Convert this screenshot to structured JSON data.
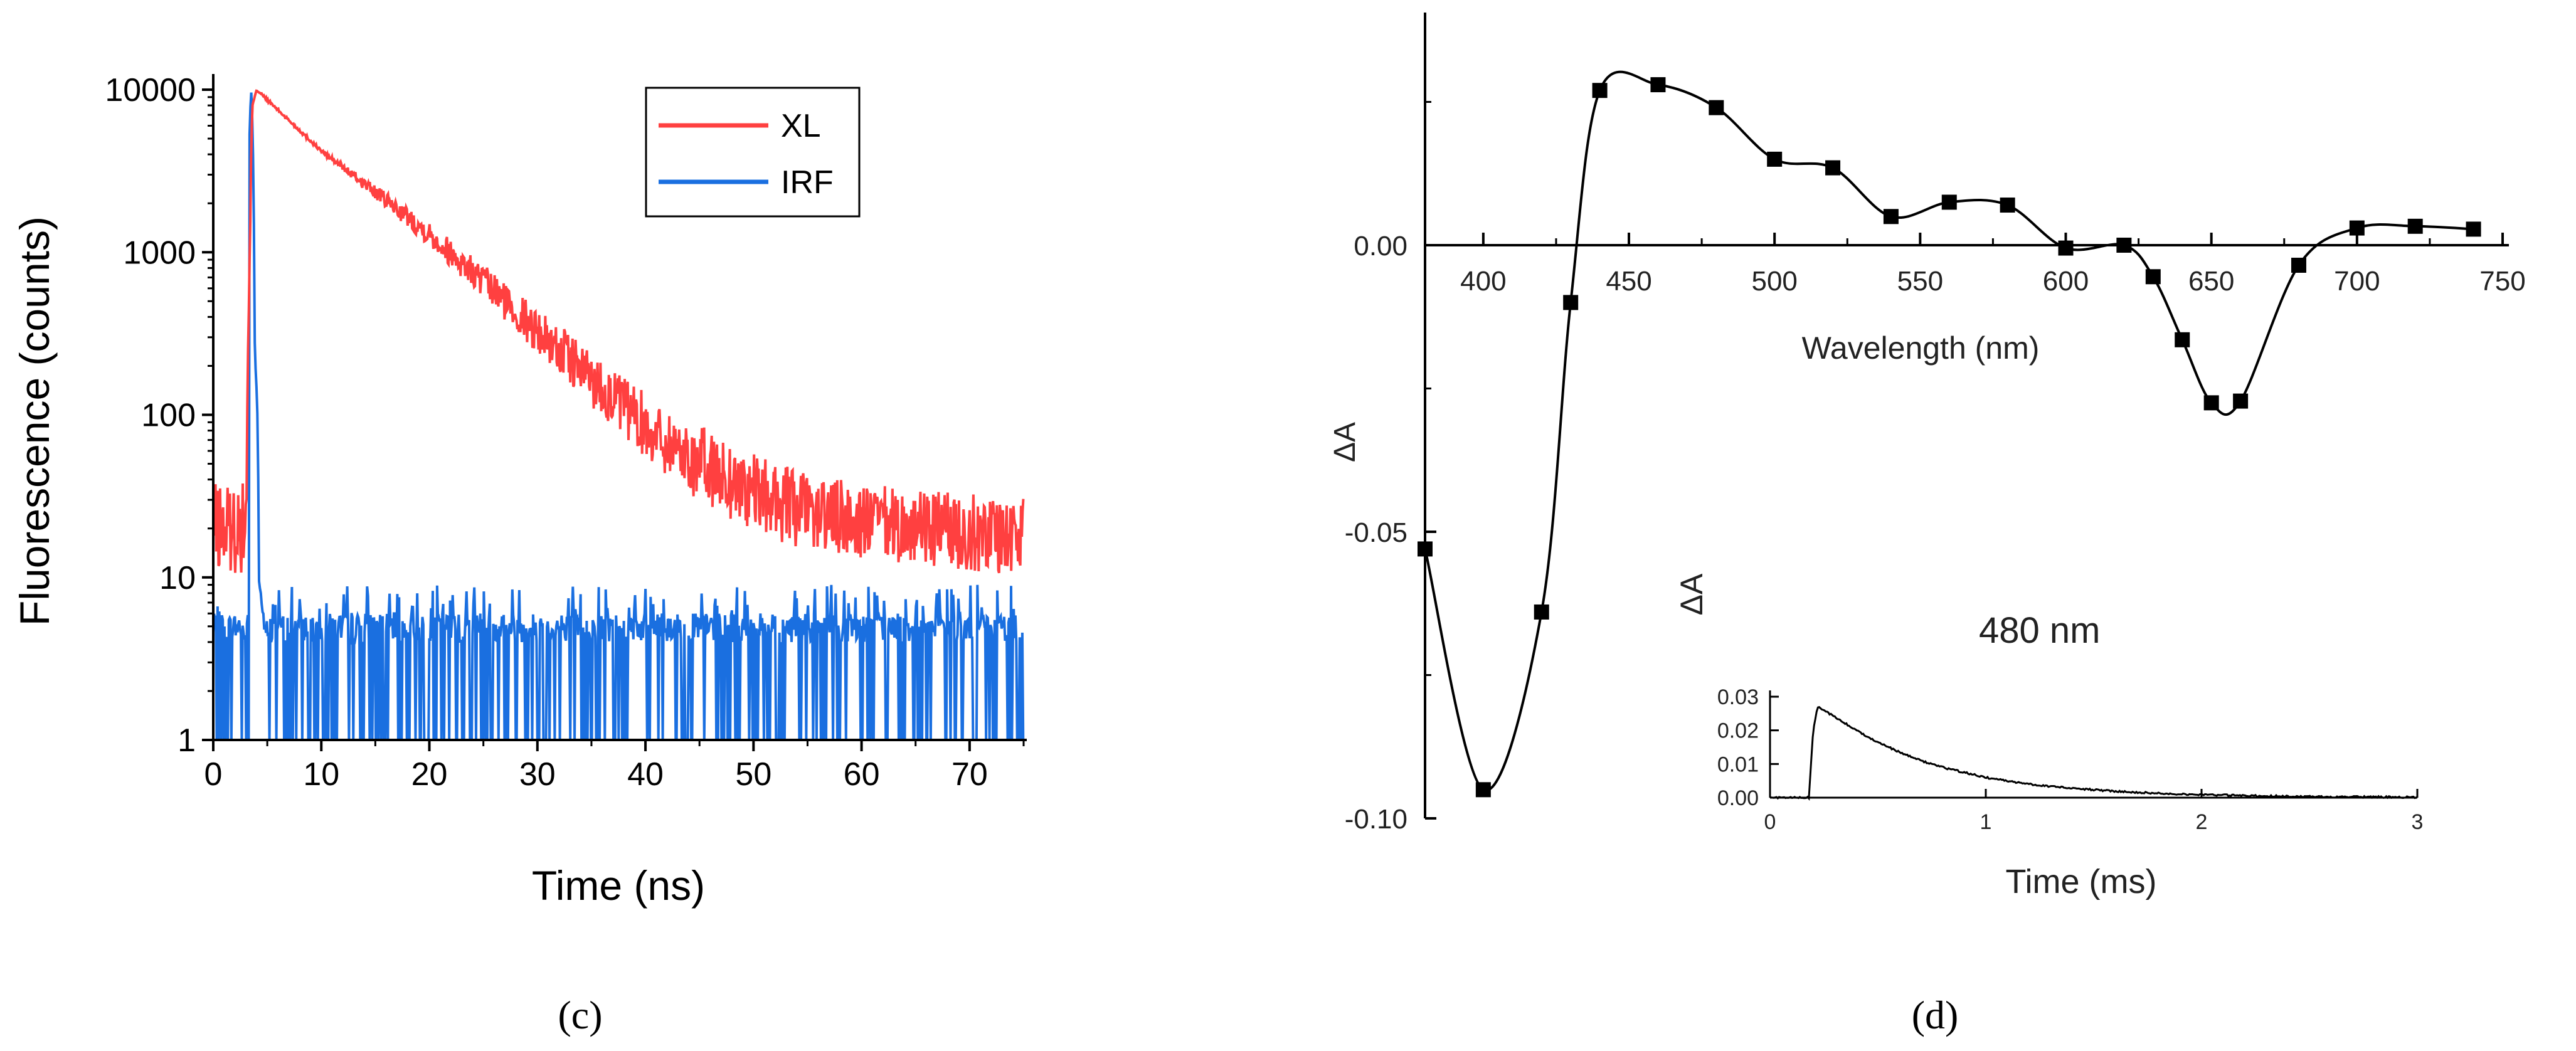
{
  "panels": {
    "c_label": "(c)",
    "d_label": "(d)"
  },
  "chart_data": [
    {
      "id": "c",
      "type": "line",
      "xlabel": "Time (ns)",
      "ylabel": "Fluorescence (counts)",
      "xlim": [
        0,
        75
      ],
      "ylim": [
        1,
        10000
      ],
      "yscale": "log",
      "xticks": [
        "0",
        "10",
        "20",
        "30",
        "40",
        "50",
        "60",
        "70"
      ],
      "xtick_values": [
        0,
        10,
        20,
        30,
        40,
        50,
        60,
        70
      ],
      "yticks": [
        "1",
        "10",
        "100",
        "1000",
        "10000"
      ],
      "ytick_values": [
        1,
        10,
        100,
        1000,
        10000
      ],
      "legend_position": "top-right",
      "grid": false,
      "series": [
        {
          "name": "XL",
          "color": "#ff4040",
          "x": [
            0,
            3,
            3.6,
            4,
            10,
            20,
            30,
            40,
            45,
            50,
            55,
            60,
            65,
            70,
            75
          ],
          "y": [
            20,
            20,
            8000,
            10000,
            4200,
            1300,
            330,
            85,
            50,
            33,
            25,
            22,
            20,
            19,
            18
          ]
        },
        {
          "name": "IRF",
          "color": "#1a6fe0",
          "x": [
            0,
            3.2,
            3.5,
            3.8,
            4.2,
            4.7,
            75
          ],
          "y": [
            5,
            5,
            10000,
            300,
            10,
            5,
            5
          ]
        }
      ]
    },
    {
      "id": "d",
      "type": "line",
      "xlabel": "Wavelength (nm)",
      "ylabel": "ΔA",
      "xlim": [
        380,
        750
      ],
      "ylim": [
        -0.1,
        0.04
      ],
      "xticks": [
        "400",
        "450",
        "500",
        "550",
        "600",
        "650",
        "700",
        "750"
      ],
      "xtick_values": [
        400,
        450,
        500,
        550,
        600,
        650,
        700,
        750
      ],
      "yticks": [
        "0.00",
        "-0.05",
        "-0.10"
      ],
      "ytick_values": [
        0,
        -0.05,
        -0.1
      ],
      "grid": false,
      "series": [
        {
          "color": "#000000",
          "x": [
            380,
            400,
            420,
            430,
            440,
            460,
            480,
            500,
            520,
            540,
            560,
            580,
            600,
            620,
            630,
            640,
            650,
            660,
            680,
            700,
            720,
            740
          ],
          "y": [
            -0.053,
            -0.095,
            -0.064,
            -0.01,
            0.027,
            0.028,
            0.024,
            0.015,
            0.0135,
            0.005,
            0.0075,
            0.007,
            -0.0005,
            0.0,
            -0.0055,
            -0.0165,
            -0.0275,
            -0.0272,
            -0.0035,
            0.003,
            0.0033,
            0.0028
          ]
        }
      ]
    },
    {
      "id": "d-inset",
      "type": "line",
      "xlabel": "Time (ms)",
      "ylabel": "ΔA",
      "annotation": "480 nm",
      "xlim": [
        0,
        3
      ],
      "ylim": [
        -0.001,
        0.03
      ],
      "xticks": [
        "0",
        "1",
        "2",
        "3"
      ],
      "xtick_values": [
        0,
        1,
        2,
        3
      ],
      "yticks": [
        "0.00",
        "0.01",
        "0.02",
        "0.03"
      ],
      "ytick_values": [
        0,
        0.01,
        0.02,
        0.03
      ],
      "grid": false,
      "series": [
        {
          "color": "#000000",
          "x": [
            0,
            0.15,
            0.18,
            0.2,
            0.22,
            0.3,
            0.4,
            0.5,
            0.6,
            0.7,
            0.8,
            1.0,
            1.2,
            1.4,
            1.6,
            1.8,
            2.0,
            2.2,
            2.5,
            2.8,
            3.0
          ],
          "y": [
            0.0,
            0.0,
            0.0,
            0.02,
            0.027,
            0.024,
            0.02,
            0.0165,
            0.0135,
            0.011,
            0.009,
            0.006,
            0.004,
            0.0028,
            0.0019,
            0.0013,
            0.0009,
            0.0006,
            0.0003,
            0.0002,
            0.0001
          ]
        }
      ]
    }
  ]
}
